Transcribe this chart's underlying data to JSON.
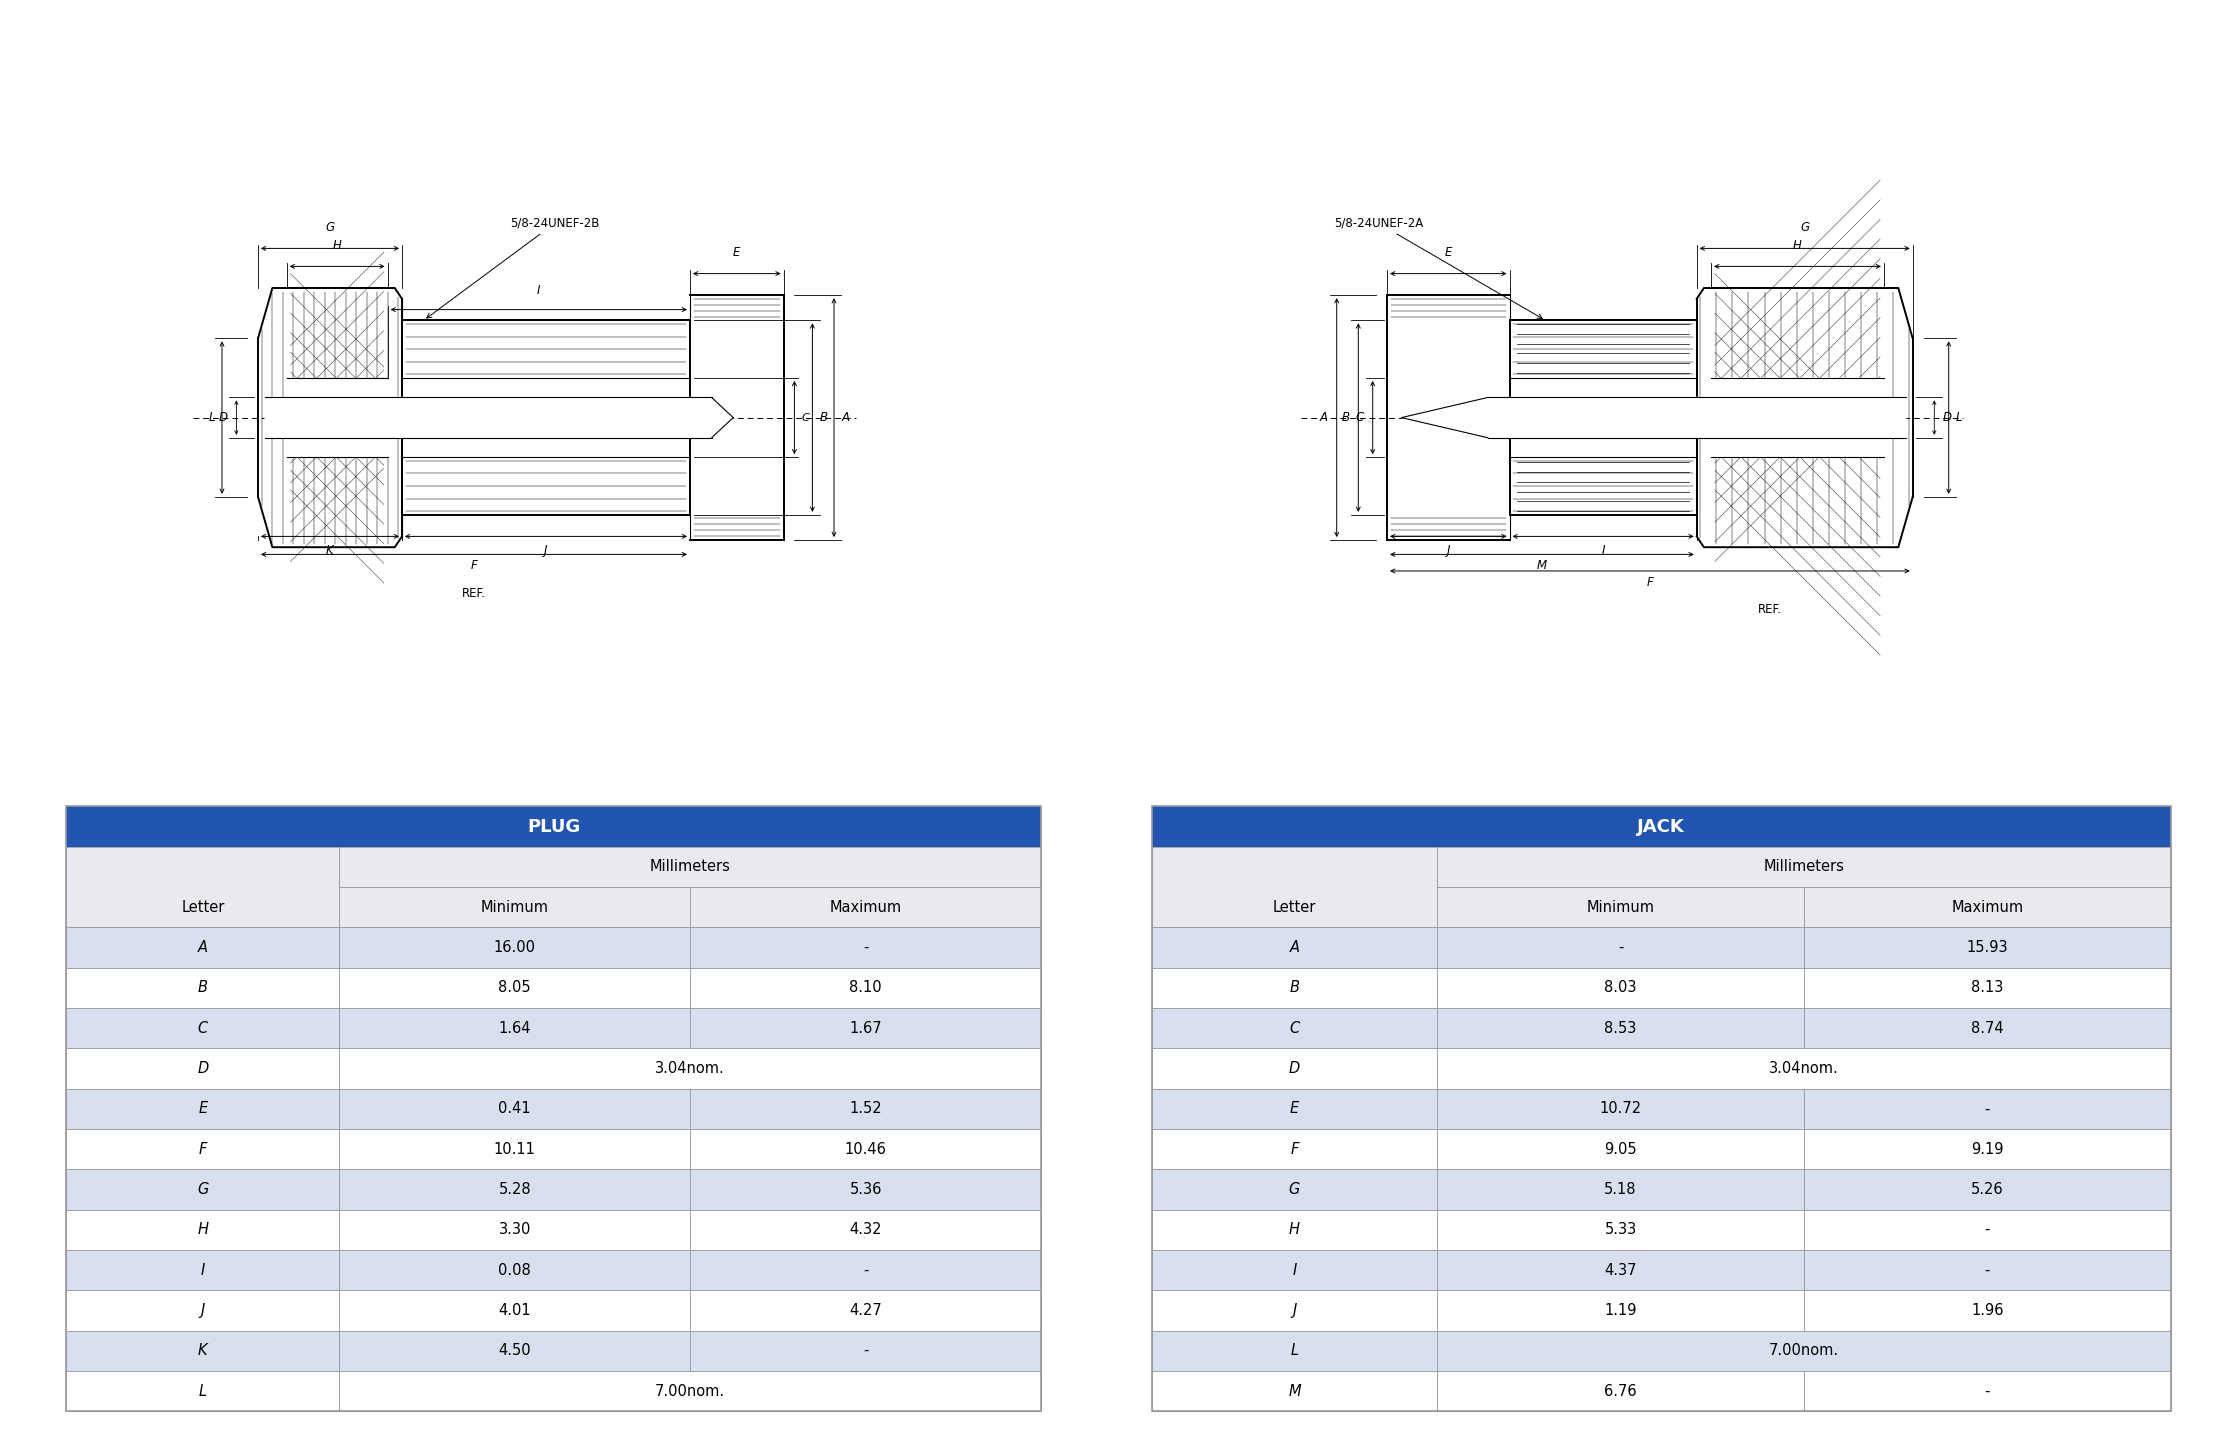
{
  "plug_title": "PLUG",
  "jack_title": "JACK",
  "millimeters": "Millimeters",
  "letter_col": "Letter",
  "minimum_col": "Minimum",
  "maximum_col": "Maximum",
  "header_color": "#2255b0",
  "header_text_color": "#ffffff",
  "subheader_bg": "#e8eaf0",
  "row_alt1_bg": "#d8dfee",
  "row_alt2_bg": "#ffffff",
  "border_color": "#999999",
  "plug_rows": [
    [
      "A",
      "16.00",
      "-"
    ],
    [
      "B",
      "8.05",
      "8.10"
    ],
    [
      "C",
      "1.64",
      "1.67"
    ],
    [
      "D",
      "3.04nom.",
      ""
    ],
    [
      "E",
      "0.41",
      "1.52"
    ],
    [
      "F",
      "10.11",
      "10.46"
    ],
    [
      "G",
      "5.28",
      "5.36"
    ],
    [
      "H",
      "3.30",
      "4.32"
    ],
    [
      "I",
      "0.08",
      "-"
    ],
    [
      "J",
      "4.01",
      "4.27"
    ],
    [
      "K",
      "4.50",
      "-"
    ],
    [
      "L",
      "7.00nom.",
      ""
    ]
  ],
  "jack_rows": [
    [
      "A",
      "-",
      "15.93"
    ],
    [
      "B",
      "8.03",
      "8.13"
    ],
    [
      "C",
      "8.53",
      "8.74"
    ],
    [
      "D",
      "3.04nom.",
      ""
    ],
    [
      "E",
      "10.72",
      "-"
    ],
    [
      "F",
      "9.05",
      "9.19"
    ],
    [
      "G",
      "5.18",
      "5.26"
    ],
    [
      "H",
      "5.33",
      "-"
    ],
    [
      "I",
      "4.37",
      "-"
    ],
    [
      "J",
      "1.19",
      "1.96"
    ],
    [
      "L",
      "7.00nom.",
      ""
    ],
    [
      "M",
      "6.76",
      "-"
    ]
  ],
  "bg_color": "#ffffff"
}
